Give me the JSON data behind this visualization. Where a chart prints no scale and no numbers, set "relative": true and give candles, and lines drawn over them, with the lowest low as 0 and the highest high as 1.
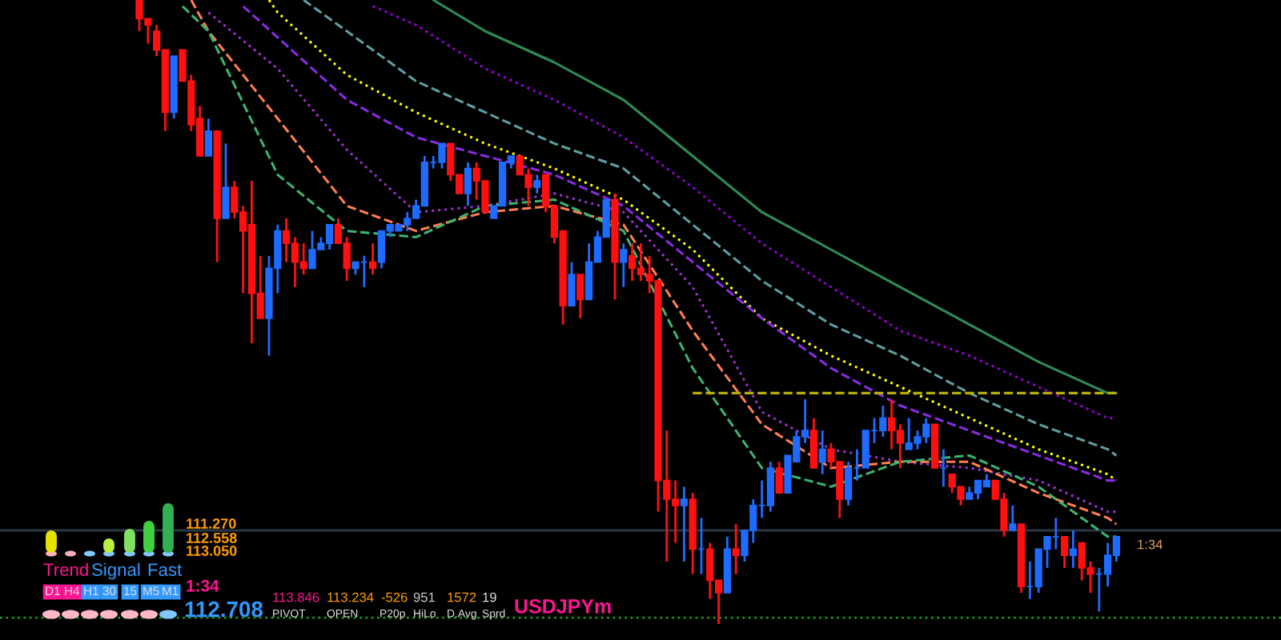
{
  "chart_data": {
    "type": "candlestick",
    "relative": true,
    "tick_labels": false,
    "categories": [
      null,
      null,
      null,
      null,
      null,
      null,
      null,
      null,
      null,
      null,
      null,
      null,
      null,
      null,
      null,
      null,
      null,
      null,
      null,
      null,
      null,
      null,
      null,
      null,
      null,
      null,
      null,
      null,
      null,
      null,
      null,
      null,
      null,
      null,
      null,
      null,
      null,
      null,
      null,
      null,
      null,
      null,
      null,
      null,
      null,
      null,
      null,
      null,
      null,
      null,
      null,
      null,
      null,
      null,
      null,
      null,
      null,
      null,
      null,
      null,
      null,
      null,
      null,
      null,
      null,
      null,
      null,
      null,
      null,
      null,
      null,
      null,
      null,
      null,
      null,
      null,
      null,
      null,
      null,
      null,
      null,
      null,
      null,
      null,
      null,
      null,
      null,
      null,
      null,
      null,
      null,
      null,
      null,
      null,
      null,
      null,
      null,
      null,
      null,
      null,
      null,
      null,
      null,
      null,
      null,
      null,
      null,
      null,
      null,
      null,
      null,
      null,
      null,
      null
    ],
    "ohlc": [
      [
        1.0,
        1.0,
        0.95,
        0.97
      ],
      [
        0.97,
        0.97,
        0.93,
        0.96
      ],
      [
        0.95,
        0.96,
        0.91,
        0.92
      ],
      [
        0.92,
        0.92,
        0.79,
        0.82
      ],
      [
        0.82,
        0.91,
        0.81,
        0.91
      ],
      [
        0.92,
        0.92,
        0.87,
        0.87
      ],
      [
        0.87,
        0.88,
        0.79,
        0.8
      ],
      [
        0.81,
        0.83,
        0.75,
        0.75
      ],
      [
        0.75,
        0.81,
        0.75,
        0.79
      ],
      [
        0.79,
        0.79,
        0.58,
        0.65
      ],
      [
        0.65,
        0.77,
        0.65,
        0.7
      ],
      [
        0.7,
        0.71,
        0.65,
        0.66
      ],
      [
        0.66,
        0.67,
        0.53,
        0.63
      ],
      [
        0.64,
        0.71,
        0.45,
        0.53
      ],
      [
        0.53,
        0.59,
        0.49,
        0.49
      ],
      [
        0.49,
        0.59,
        0.43,
        0.57
      ],
      [
        0.57,
        0.64,
        0.53,
        0.63
      ],
      [
        0.63,
        0.65,
        0.58,
        0.61
      ],
      [
        0.61,
        0.62,
        0.54,
        0.58
      ],
      [
        0.58,
        0.61,
        0.56,
        0.57
      ],
      [
        0.57,
        0.63,
        0.57,
        0.6
      ],
      [
        0.6,
        0.62,
        0.6,
        0.61
      ],
      [
        0.61,
        0.64,
        0.6,
        0.64
      ],
      [
        0.64,
        0.65,
        0.61,
        0.61
      ],
      [
        0.61,
        0.62,
        0.55,
        0.57
      ],
      [
        0.57,
        0.58,
        0.56,
        0.58
      ],
      [
        0.58,
        0.59,
        0.54,
        0.58
      ],
      [
        0.58,
        0.61,
        0.56,
        0.57
      ],
      [
        0.58,
        0.63,
        0.57,
        0.63
      ],
      [
        0.63,
        0.64,
        0.62,
        0.64
      ],
      [
        0.63,
        0.64,
        0.63,
        0.64
      ],
      [
        0.64,
        0.66,
        0.63,
        0.65
      ],
      [
        0.65,
        0.68,
        0.65,
        0.67
      ],
      [
        0.67,
        0.75,
        0.67,
        0.74
      ],
      [
        0.74,
        0.75,
        0.73,
        0.74
      ],
      [
        0.74,
        0.77,
        0.73,
        0.77
      ],
      [
        0.77,
        0.77,
        0.71,
        0.72
      ],
      [
        0.72,
        0.72,
        0.69,
        0.69
      ],
      [
        0.69,
        0.74,
        0.67,
        0.73
      ],
      [
        0.73,
        0.74,
        0.68,
        0.71
      ],
      [
        0.71,
        0.71,
        0.66,
        0.66
      ],
      [
        0.65,
        0.67,
        0.65,
        0.67
      ],
      [
        0.67,
        0.74,
        0.67,
        0.74
      ],
      [
        0.74,
        0.75,
        0.73,
        0.75
      ],
      [
        0.75,
        0.75,
        0.72,
        0.72
      ],
      [
        0.72,
        0.73,
        0.67,
        0.7
      ],
      [
        0.7,
        0.72,
        0.69,
        0.71
      ],
      [
        0.72,
        0.72,
        0.66,
        0.67
      ],
      [
        0.67,
        0.67,
        0.61,
        0.62
      ],
      [
        0.63,
        0.63,
        0.48,
        0.51
      ],
      [
        0.51,
        0.58,
        0.51,
        0.56
      ],
      [
        0.56,
        0.56,
        0.49,
        0.52
      ],
      [
        0.52,
        0.61,
        0.52,
        0.58
      ],
      [
        0.58,
        0.63,
        0.58,
        0.62
      ],
      [
        0.62,
        0.68,
        0.62,
        0.68
      ],
      [
        0.68,
        0.69,
        0.52,
        0.58
      ],
      [
        0.58,
        0.61,
        0.54,
        0.6
      ],
      [
        0.59,
        0.61,
        0.55,
        0.57
      ],
      [
        0.57,
        0.61,
        0.55,
        0.56
      ],
      [
        0.56,
        0.59,
        0.53,
        0.55
      ],
      [
        0.55,
        0.55,
        0.18,
        0.23
      ],
      [
        0.23,
        0.31,
        0.1,
        0.2
      ],
      [
        0.2,
        0.23,
        0.13,
        0.19
      ],
      [
        0.19,
        0.22,
        0.1,
        0.2
      ],
      [
        0.2,
        0.21,
        0.08,
        0.12
      ],
      [
        0.12,
        0.17,
        0.08,
        0.12
      ],
      [
        0.12,
        0.13,
        0.04,
        0.07
      ],
      [
        0.07,
        0.07,
        0.0,
        0.05
      ],
      [
        0.05,
        0.14,
        0.05,
        0.12
      ],
      [
        0.12,
        0.16,
        0.08,
        0.11
      ],
      [
        0.11,
        0.15,
        0.1,
        0.15
      ],
      [
        0.15,
        0.2,
        0.13,
        0.19
      ],
      [
        0.19,
        0.23,
        0.17,
        0.19
      ],
      [
        0.19,
        0.26,
        0.18,
        0.25
      ],
      [
        0.25,
        0.26,
        0.21,
        0.21
      ],
      [
        0.21,
        0.27,
        0.21,
        0.27
      ],
      [
        0.26,
        0.31,
        0.26,
        0.3
      ],
      [
        0.3,
        0.36,
        0.29,
        0.31
      ],
      [
        0.31,
        0.33,
        0.25,
        0.25
      ],
      [
        0.26,
        0.31,
        0.24,
        0.28
      ],
      [
        0.28,
        0.29,
        0.25,
        0.26
      ],
      [
        0.26,
        0.26,
        0.17,
        0.2
      ],
      [
        0.2,
        0.26,
        0.19,
        0.25
      ],
      [
        0.25,
        0.28,
        0.23,
        0.25
      ],
      [
        0.25,
        0.31,
        0.25,
        0.31
      ],
      [
        0.31,
        0.33,
        0.29,
        0.31
      ],
      [
        0.31,
        0.35,
        0.3,
        0.33
      ],
      [
        0.33,
        0.36,
        0.28,
        0.31
      ],
      [
        0.31,
        0.32,
        0.25,
        0.29
      ],
      [
        0.28,
        0.33,
        0.28,
        0.29
      ],
      [
        0.29,
        0.31,
        0.28,
        0.3
      ],
      [
        0.3,
        0.33,
        0.29,
        0.32
      ],
      [
        0.32,
        0.32,
        0.25,
        0.25
      ],
      [
        0.25,
        0.28,
        0.22,
        0.25
      ],
      [
        0.24,
        0.24,
        0.21,
        0.22
      ],
      [
        0.22,
        0.22,
        0.19,
        0.2
      ],
      [
        0.2,
        0.22,
        0.2,
        0.21
      ],
      [
        0.21,
        0.23,
        0.2,
        0.23
      ],
      [
        0.22,
        0.24,
        0.22,
        0.23
      ],
      [
        0.23,
        0.23,
        0.2,
        0.2
      ],
      [
        0.2,
        0.21,
        0.14,
        0.15
      ],
      [
        0.15,
        0.19,
        0.15,
        0.16
      ],
      [
        0.16,
        0.16,
        0.05,
        0.06
      ],
      [
        0.06,
        0.1,
        0.04,
        0.06
      ],
      [
        0.06,
        0.12,
        0.05,
        0.12
      ],
      [
        0.12,
        0.14,
        0.09,
        0.14
      ],
      [
        0.14,
        0.17,
        0.12,
        0.14
      ],
      [
        0.14,
        0.14,
        0.09,
        0.11
      ],
      [
        0.11,
        0.15,
        0.09,
        0.12
      ],
      [
        0.13,
        0.13,
        0.07,
        0.09
      ],
      [
        0.09,
        0.1,
        0.05,
        0.08
      ],
      [
        0.08,
        0.09,
        0.02,
        0.08
      ],
      [
        0.08,
        0.13,
        0.06,
        0.11
      ],
      [
        0.11,
        0.14,
        0.1,
        0.14
      ]
    ],
    "series": [
      {
        "type": "line",
        "color": "#2e8b57",
        "line_style": "solid",
        "values": [
          null,
          null,
          null,
          null,
          null,
          null,
          null,
          null,
          null,
          null,
          null,
          null,
          null,
          null,
          null,
          null,
          null,
          null,
          null,
          null,
          null,
          null,
          null,
          null,
          null,
          null,
          null,
          null,
          null,
          null,
          null,
          null,
          null,
          null,
          1.0,
          null,
          null,
          null,
          null,
          null,
          0.95,
          null,
          null,
          null,
          null,
          null,
          null,
          null,
          0.9,
          null,
          null,
          null,
          null,
          null,
          null,
          null,
          0.84,
          null,
          null,
          null,
          null,
          null,
          null,
          null,
          0.75,
          null,
          null,
          null,
          null,
          null,
          null,
          null,
          0.66,
          null,
          null,
          null,
          null,
          null,
          null,
          null,
          0.6,
          null,
          null,
          null,
          null,
          null,
          null,
          null,
          0.54,
          null,
          null,
          null,
          null,
          null,
          null,
          null,
          0.48,
          null,
          null,
          null,
          null,
          null,
          null,
          null,
          0.42,
          null,
          null,
          null,
          null,
          null,
          null,
          null,
          0.37,
          0.37
        ]
      },
      {
        "type": "line",
        "color": "#9400d3",
        "line_style": "dotted",
        "values": [
          null,
          null,
          null,
          null,
          null,
          null,
          null,
          null,
          null,
          null,
          null,
          null,
          null,
          null,
          null,
          null,
          null,
          null,
          null,
          null,
          null,
          null,
          null,
          null,
          null,
          null,
          null,
          0.99,
          null,
          null,
          null,
          null,
          0.96,
          null,
          null,
          null,
          null,
          null,
          null,
          null,
          0.89,
          null,
          null,
          null,
          null,
          null,
          null,
          null,
          0.84,
          null,
          null,
          null,
          null,
          null,
          null,
          null,
          0.78,
          null,
          null,
          null,
          null,
          null,
          null,
          null,
          0.7,
          null,
          null,
          null,
          null,
          null,
          null,
          null,
          0.61,
          null,
          null,
          null,
          null,
          null,
          null,
          null,
          0.54,
          null,
          null,
          null,
          null,
          null,
          null,
          null,
          0.47,
          null,
          null,
          null,
          null,
          null,
          null,
          null,
          0.43,
          null,
          null,
          null,
          null,
          null,
          null,
          null,
          0.38,
          null,
          null,
          null,
          null,
          null,
          null,
          null,
          0.33,
          0.33
        ]
      },
      {
        "type": "line",
        "color": "#5f9ea0",
        "line_style": "dashed",
        "values": [
          null,
          null,
          null,
          null,
          null,
          null,
          null,
          null,
          null,
          null,
          null,
          null,
          null,
          null,
          null,
          null,
          null,
          null,
          null,
          1.0,
          null,
          null,
          null,
          null,
          0.95,
          null,
          null,
          null,
          null,
          null,
          null,
          null,
          0.87,
          null,
          null,
          null,
          null,
          null,
          null,
          null,
          0.82,
          null,
          null,
          null,
          null,
          null,
          null,
          null,
          0.77,
          null,
          null,
          null,
          null,
          null,
          null,
          null,
          0.73,
          null,
          null,
          null,
          null,
          null,
          null,
          null,
          0.64,
          null,
          null,
          null,
          null,
          null,
          null,
          null,
          0.55,
          null,
          null,
          null,
          null,
          null,
          null,
          null,
          0.48,
          null,
          null,
          null,
          null,
          null,
          null,
          null,
          0.43,
          null,
          null,
          null,
          null,
          null,
          null,
          null,
          0.37,
          null,
          null,
          null,
          null,
          null,
          null,
          null,
          0.32,
          null,
          null,
          null,
          null,
          null,
          null,
          null,
          0.28,
          0.27
        ]
      },
      {
        "type": "line",
        "color": "#ffff00",
        "line_style": "dotted",
        "values": [
          null,
          null,
          null,
          null,
          null,
          null,
          null,
          null,
          null,
          null,
          null,
          null,
          null,
          null,
          null,
          1.0,
          0.98,
          null,
          null,
          null,
          null,
          null,
          null,
          null,
          0.88,
          null,
          null,
          null,
          null,
          null,
          null,
          null,
          0.82,
          null,
          null,
          null,
          null,
          null,
          null,
          null,
          0.77,
          null,
          null,
          null,
          null,
          null,
          null,
          null,
          0.73,
          null,
          null,
          null,
          null,
          null,
          null,
          null,
          0.68,
          null,
          null,
          null,
          null,
          null,
          null,
          null,
          0.6,
          null,
          null,
          null,
          null,
          null,
          null,
          null,
          0.49,
          null,
          null,
          null,
          null,
          null,
          null,
          null,
          0.43,
          null,
          null,
          null,
          null,
          null,
          null,
          null,
          0.38,
          null,
          null,
          null,
          null,
          null,
          null,
          null,
          0.33,
          null,
          null,
          null,
          null,
          null,
          null,
          null,
          0.28,
          null,
          null,
          null,
          null,
          null,
          null,
          null,
          0.24,
          0.23
        ]
      },
      {
        "type": "line",
        "color": "#8a2be2",
        "line_style": "dashed",
        "values": [
          null,
          null,
          null,
          null,
          null,
          null,
          null,
          null,
          null,
          null,
          null,
          null,
          0.99,
          null,
          null,
          null,
          0.94,
          null,
          null,
          null,
          null,
          null,
          null,
          null,
          0.84,
          null,
          null,
          null,
          null,
          null,
          null,
          null,
          0.78,
          null,
          null,
          null,
          null,
          null,
          null,
          null,
          0.75,
          null,
          null,
          null,
          null,
          null,
          null,
          null,
          0.72,
          null,
          null,
          null,
          null,
          null,
          null,
          null,
          0.67,
          null,
          null,
          null,
          null,
          null,
          null,
          null,
          0.58,
          null,
          null,
          null,
          null,
          null,
          null,
          null,
          0.49,
          null,
          null,
          null,
          null,
          null,
          null,
          null,
          0.41,
          null,
          null,
          null,
          null,
          null,
          null,
          null,
          0.35,
          null,
          null,
          null,
          null,
          null,
          null,
          null,
          0.31,
          null,
          null,
          null,
          null,
          null,
          null,
          null,
          0.27,
          null,
          null,
          null,
          null,
          null,
          null,
          null,
          0.23,
          0.23
        ]
      },
      {
        "type": "line",
        "color": "#9932cc",
        "line_style": "dotted",
        "values": [
          null,
          null,
          null,
          null,
          null,
          null,
          null,
          null,
          0.98,
          null,
          null,
          null,
          null,
          null,
          null,
          null,
          0.89,
          null,
          null,
          null,
          null,
          null,
          null,
          null,
          0.76,
          null,
          null,
          null,
          null,
          null,
          null,
          null,
          0.66,
          null,
          null,
          null,
          null,
          null,
          null,
          null,
          0.67,
          null,
          null,
          null,
          null,
          null,
          null,
          null,
          0.69,
          null,
          null,
          null,
          null,
          null,
          null,
          null,
          0.66,
          null,
          null,
          null,
          null,
          null,
          null,
          null,
          0.54,
          null,
          null,
          null,
          null,
          null,
          null,
          null,
          0.34,
          null,
          null,
          null,
          null,
          null,
          null,
          null,
          0.28,
          null,
          null,
          null,
          null,
          null,
          null,
          null,
          0.26,
          null,
          null,
          null,
          null,
          null,
          null,
          null,
          0.25,
          null,
          null,
          null,
          null,
          null,
          null,
          null,
          0.23,
          null,
          null,
          null,
          null,
          null,
          null,
          null,
          0.18,
          0.18
        ]
      },
      {
        "type": "line",
        "color": "#ff7f50",
        "line_style": "dashed",
        "values": [
          null,
          null,
          null,
          null,
          null,
          null,
          1.0,
          null,
          0.95,
          null,
          null,
          null,
          null,
          null,
          null,
          null,
          0.81,
          null,
          null,
          null,
          null,
          null,
          null,
          null,
          0.67,
          null,
          null,
          null,
          null,
          null,
          null,
          null,
          0.63,
          null,
          null,
          null,
          null,
          null,
          null,
          null,
          0.66,
          null,
          null,
          null,
          null,
          null,
          null,
          null,
          0.67,
          null,
          null,
          null,
          null,
          null,
          null,
          null,
          0.64,
          null,
          null,
          null,
          null,
          null,
          null,
          null,
          0.47,
          null,
          null,
          null,
          null,
          null,
          null,
          null,
          0.32,
          null,
          null,
          null,
          null,
          null,
          null,
          null,
          0.25,
          null,
          null,
          null,
          null,
          null,
          null,
          null,
          0.26,
          null,
          null,
          null,
          null,
          null,
          null,
          null,
          0.26,
          null,
          null,
          null,
          null,
          null,
          null,
          null,
          0.21,
          null,
          null,
          null,
          null,
          null,
          null,
          null,
          0.17,
          0.16
        ]
      },
      {
        "type": "line",
        "color": "#3cb371",
        "line_style": "dashed",
        "values": [
          null,
          null,
          null,
          null,
          null,
          0.99,
          null,
          null,
          0.95,
          null,
          null,
          null,
          null,
          null,
          null,
          null,
          0.72,
          null,
          null,
          null,
          null,
          null,
          null,
          null,
          0.63,
          null,
          null,
          null,
          null,
          null,
          null,
          null,
          0.62,
          null,
          null,
          null,
          null,
          null,
          null,
          null,
          0.67,
          null,
          null,
          null,
          null,
          null,
          null,
          null,
          0.68,
          null,
          null,
          null,
          null,
          null,
          null,
          null,
          0.63,
          null,
          null,
          null,
          null,
          null,
          null,
          null,
          0.41,
          null,
          null,
          null,
          null,
          null,
          null,
          null,
          0.25,
          null,
          null,
          null,
          null,
          null,
          null,
          null,
          0.22,
          null,
          null,
          null,
          null,
          null,
          null,
          null,
          0.26,
          null,
          null,
          null,
          null,
          null,
          null,
          null,
          0.27,
          null,
          null,
          null,
          null,
          null,
          null,
          null,
          0.22,
          null,
          null,
          null,
          null,
          null,
          null,
          null,
          0.14,
          0.14
        ]
      },
      {
        "type": "line",
        "color": "#b8b000",
        "line_style": "dashed",
        "values": [
          null,
          null,
          null,
          null,
          null,
          null,
          null,
          null,
          null,
          null,
          null,
          null,
          null,
          null,
          null,
          null,
          null,
          null,
          null,
          null,
          null,
          null,
          null,
          null,
          null,
          null,
          null,
          null,
          null,
          null,
          null,
          null,
          null,
          null,
          null,
          null,
          null,
          null,
          null,
          null,
          null,
          null,
          null,
          null,
          null,
          null,
          null,
          null,
          null,
          null,
          null,
          null,
          null,
          null,
          null,
          null,
          null,
          null,
          null,
          null,
          null,
          null,
          null,
          null,
          0.37,
          null,
          null,
          null,
          null,
          null,
          null,
          null,
          null,
          null,
          null,
          null,
          null,
          null,
          null,
          null,
          null,
          null,
          null,
          null,
          null,
          null,
          null,
          null,
          null,
          null,
          null,
          null,
          null,
          null,
          null,
          null,
          null,
          null,
          null,
          null,
          null,
          null,
          null,
          null,
          null,
          null,
          null,
          null,
          null,
          null,
          null,
          null,
          null,
          0.37
        ]
      }
    ],
    "ref_lines": [
      {
        "axis": "y",
        "value": 0.15,
        "color": "#2a3846",
        "line_style": "solid"
      },
      {
        "axis": "y",
        "value": 0.01,
        "color": "#1a9a1a",
        "line_style": "dotted"
      }
    ],
    "annotations": [
      "111.270",
      "112.558",
      "113.050",
      "Trend",
      "Signal",
      "Fast",
      "D1",
      "H4",
      "H1",
      "30",
      "15",
      "M5",
      "M1",
      "1:34",
      "112.708",
      "113.846",
      "PIVOT",
      "113.234",
      "OPEN",
      "-526",
      "P20p",
      "951",
      "HiLo",
      "1572",
      "19",
      "D.Avg",
      "Sprd",
      "USDJPYm",
      "1:34"
    ]
  }
}
